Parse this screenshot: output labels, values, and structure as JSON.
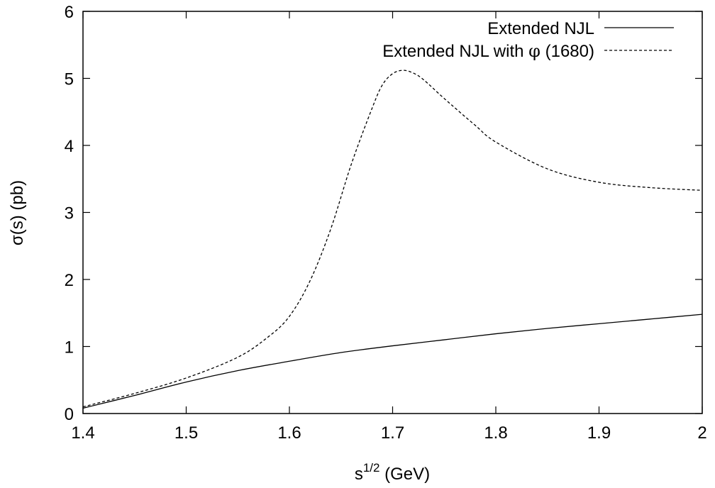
{
  "chart_data": {
    "type": "line",
    "xlabel": {
      "base": "s",
      "sup": "1/2",
      "rest": " (GeV)"
    },
    "ylabel": "σ(s) (pb)",
    "xlim": [
      1.4,
      2.0
    ],
    "ylim": [
      0,
      6
    ],
    "x_ticks": [
      1.4,
      1.5,
      1.6,
      1.7,
      1.8,
      1.9,
      2.0
    ],
    "x_tick_labels": [
      "1.4",
      "1.5",
      "1.6",
      "1.7",
      "1.8",
      "1.9",
      "2"
    ],
    "y_ticks": [
      0,
      1,
      2,
      3,
      4,
      5,
      6
    ],
    "y_tick_labels": [
      "0",
      "1",
      "2",
      "3",
      "4",
      "5",
      "6"
    ],
    "grid": false,
    "legend_position": "top-right",
    "series": [
      {
        "name": "Extended NJL",
        "style": "solid",
        "color": "#000000",
        "x": [
          1.4,
          1.45,
          1.5,
          1.55,
          1.6,
          1.65,
          1.7,
          1.75,
          1.8,
          1.85,
          1.9,
          1.95,
          2.0
        ],
        "y": [
          0.08,
          0.27,
          0.47,
          0.64,
          0.78,
          0.91,
          1.01,
          1.1,
          1.19,
          1.27,
          1.34,
          1.41,
          1.48
        ]
      },
      {
        "name_parts": [
          "Extended NJL with ",
          "φ",
          " (1680)"
        ],
        "style": "dashed",
        "color": "#000000",
        "x": [
          1.4,
          1.45,
          1.5,
          1.55,
          1.58,
          1.6,
          1.62,
          1.64,
          1.66,
          1.68,
          1.69,
          1.7,
          1.71,
          1.72,
          1.73,
          1.75,
          1.78,
          1.8,
          1.85,
          1.9,
          1.95,
          2.0
        ],
        "y": [
          0.1,
          0.3,
          0.53,
          0.84,
          1.15,
          1.45,
          1.98,
          2.75,
          3.72,
          4.55,
          4.9,
          5.07,
          5.12,
          5.08,
          4.98,
          4.7,
          4.3,
          4.05,
          3.65,
          3.45,
          3.37,
          3.33
        ]
      }
    ]
  }
}
